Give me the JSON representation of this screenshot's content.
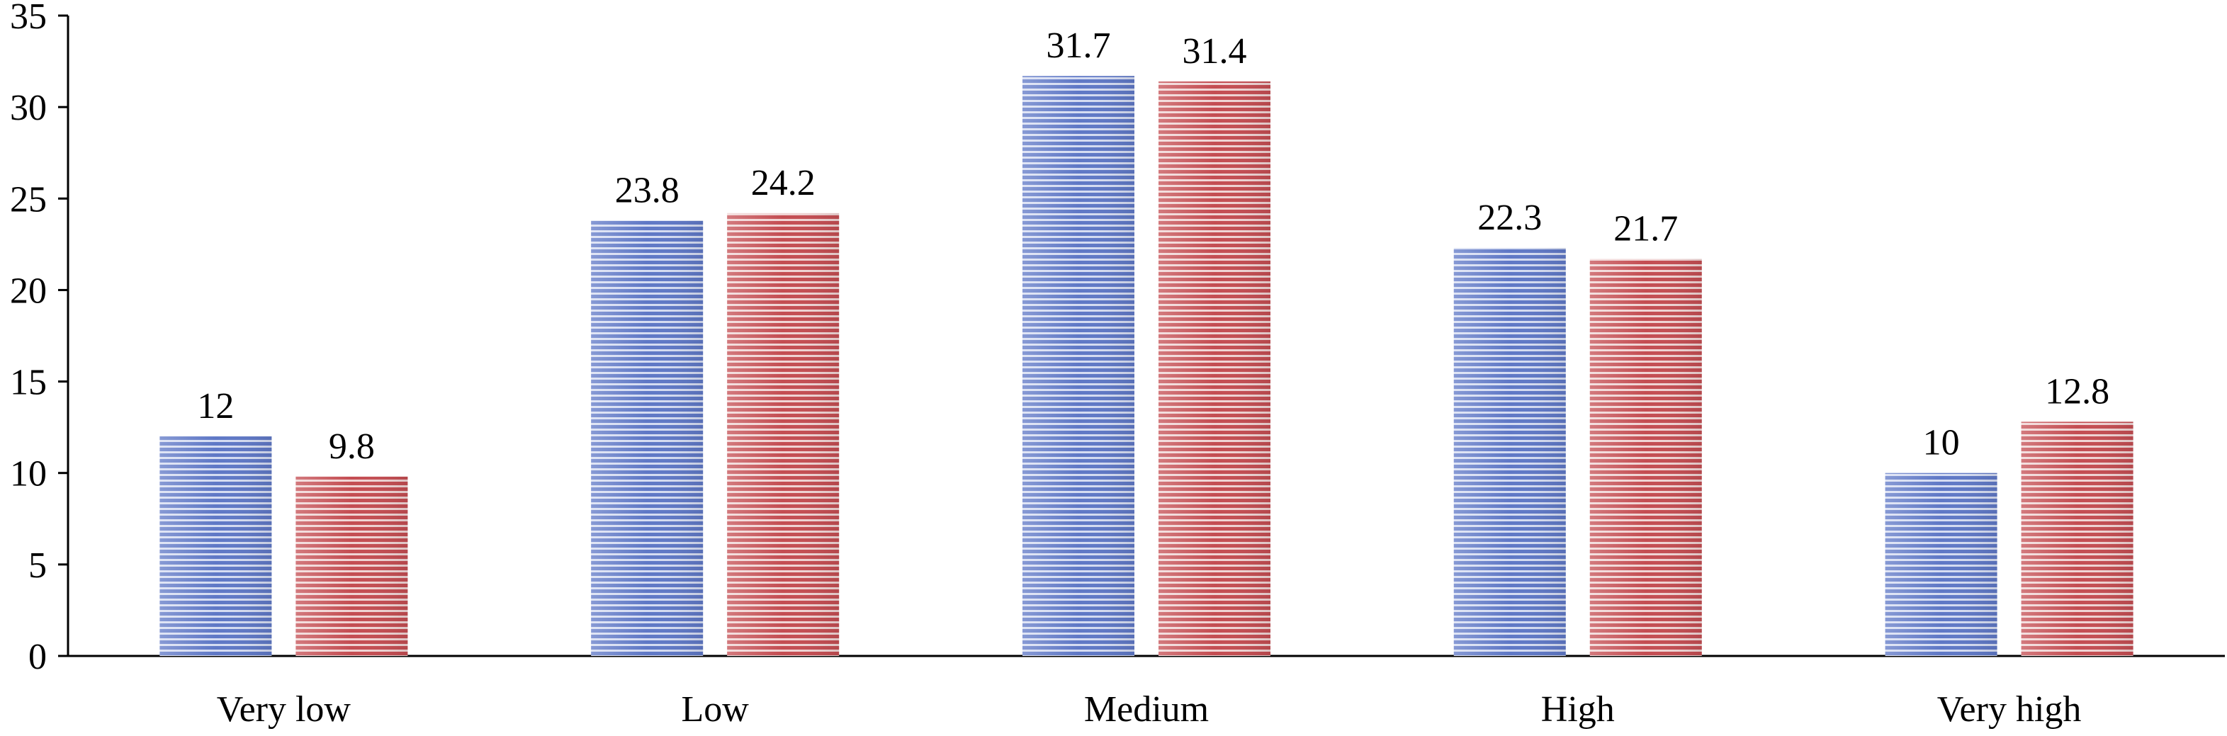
{
  "chart_data": {
    "type": "bar",
    "title": "",
    "xlabel": "",
    "ylabel": "",
    "categories": [
      "Very low",
      "Low",
      "Medium",
      "High",
      "Very high"
    ],
    "series": [
      {
        "values": [
          12,
          23.8,
          31.7,
          22.3,
          10
        ],
        "labels": [
          "12",
          "23.8",
          "31.7",
          "22.3",
          "10"
        ],
        "color": "#6a7fc9"
      },
      {
        "values": [
          9.8,
          24.2,
          31.4,
          21.7,
          12.8
        ],
        "labels": [
          "9.8",
          "24.2",
          "31.4",
          "21.7",
          "12.8"
        ],
        "color": "#c9565a"
      }
    ],
    "ylim": [
      0,
      35
    ],
    "yticks": [
      "0",
      "5",
      "10",
      "15",
      "20",
      "25",
      "30",
      "35"
    ],
    "bar_pattern": "horizontal-stripes",
    "grid": false,
    "legend": "none"
  }
}
